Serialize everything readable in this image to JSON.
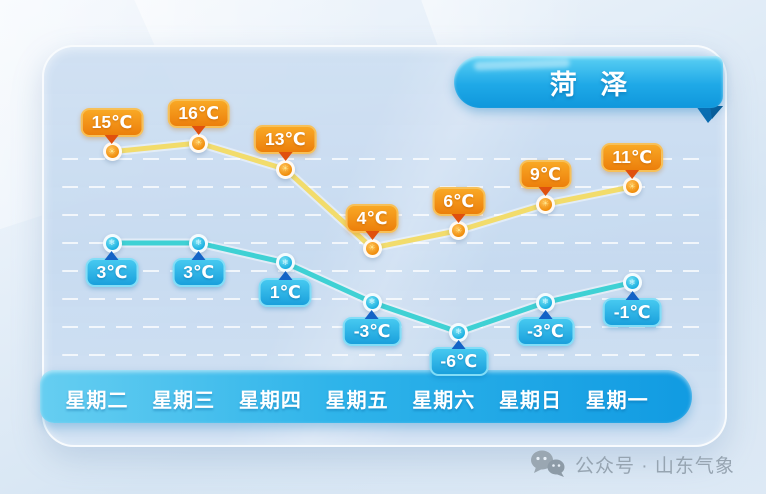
{
  "header": {
    "title": "菏 泽"
  },
  "chart_data": {
    "type": "line",
    "categories": [
      "星期二",
      "星期三",
      "星期四",
      "星期五",
      "星期六",
      "星期日",
      "星期一"
    ],
    "series": [
      {
        "name": "high",
        "values": [
          15,
          16,
          13,
          4,
          6,
          9,
          11
        ],
        "labels": [
          "15℃",
          "16℃",
          "13℃",
          "4℃",
          "6℃",
          "9℃",
          "11℃"
        ],
        "marker_color": "#ef8a07",
        "line_color": "#f2dc6c",
        "label_bg": "#f08c12"
      },
      {
        "name": "low",
        "values": [
          3,
          3,
          1,
          -3,
          -6,
          -3,
          -1
        ],
        "labels": [
          "3℃",
          "3℃",
          "1℃",
          "-3℃",
          "-6℃",
          "-3℃",
          "-1℃"
        ],
        "marker_color": "#18ade0",
        "line_color": "#3fd1d4",
        "label_bg": "#22a9e2"
      }
    ],
    "grid": "dashed-horizontal-white",
    "legend": "none",
    "title": "菏 泽",
    "xlabel": "",
    "ylabel": ""
  },
  "footer": {
    "source": "公众号 · 山东气象"
  },
  "icons": {
    "footer_icon": "wechat-bubbles-icon",
    "high_point_icon": "sun-icon",
    "low_point_icon": "snowflake-icon"
  },
  "colors": {
    "ribbon_blue": "#1fa9e7",
    "daybar_blue": "#2fb4ea",
    "card_bg": "#c5d9ef",
    "high_accent": "#f08c12",
    "low_accent": "#22a9e2",
    "footer_gray": "#96a4b1"
  }
}
